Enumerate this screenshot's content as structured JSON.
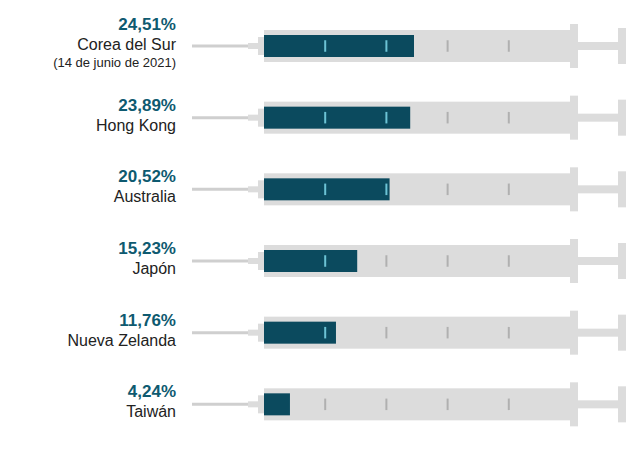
{
  "chart_data": {
    "type": "bar",
    "orientation": "horizontal",
    "categories": [
      "Corea del Sur",
      "Hong Kong",
      "Australia",
      "Japón",
      "Nueva Zelanda",
      "Taiwán"
    ],
    "values": [
      24.51,
      23.89,
      20.52,
      15.23,
      11.76,
      4.24
    ],
    "value_labels": [
      "24,51%",
      "23,89%",
      "20,52%",
      "15,23%",
      "11,76%",
      "4,24%"
    ],
    "annotations": [
      {
        "category": "Corea del Sur",
        "text": "(14 de junio de 2021)"
      }
    ],
    "xlim": [
      0,
      50
    ],
    "xticks": [
      0,
      10,
      20,
      30,
      40,
      50
    ],
    "tick_labels": false,
    "data_labels": true,
    "grid": false,
    "color": "#0b4a5e"
  }
}
